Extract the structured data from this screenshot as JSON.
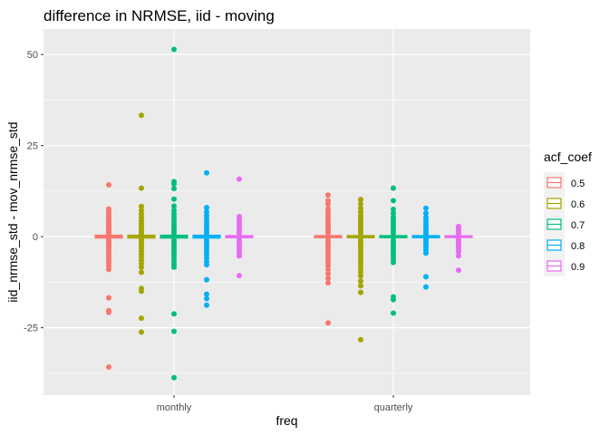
{
  "chart_data": {
    "type": "boxplot",
    "title": "difference in NRMSE, iid - moving",
    "xlabel": "freq",
    "ylabel": "iid_nrmse_std - mov_nrmse_std",
    "categories": [
      "monthly",
      "quarterly"
    ],
    "ylim": [
      -43.5,
      57
    ],
    "yticks": [
      -25,
      0,
      25,
      50
    ],
    "grid": true,
    "legend": {
      "title": "acf_coef",
      "position": "right"
    },
    "series": [
      {
        "name": "0.5",
        "color": "#F8766D",
        "boxes": [
          {
            "category": "monthly",
            "q1": -0.4,
            "median": 0,
            "q3": 0.4,
            "points": [
              14.2,
              7.6,
              6.8,
              6.1,
              5.4,
              4.9,
              4.3,
              3.8,
              3.3,
              2.8,
              2.3,
              1.9,
              1.5,
              1.1,
              0.8,
              -0.8,
              -1.2,
              -1.7,
              -2.3,
              -2.9,
              -3.6,
              -4.3,
              -5.0,
              -5.7,
              -6.5,
              -7.2,
              -8.1,
              -9.0,
              -16.8,
              -20.3,
              -20.8,
              -35.8
            ]
          },
          {
            "category": "quarterly",
            "q1": -0.3,
            "median": 0,
            "q3": 0.3,
            "points": [
              11.4,
              9.9,
              8.9,
              7.6,
              6.6,
              5.7,
              4.9,
              4.2,
              3.5,
              2.8,
              2.2,
              1.6,
              1.0,
              -1.0,
              -1.6,
              -2.3,
              -3.0,
              -3.8,
              -4.5,
              -5.3,
              -6.1,
              -7.0,
              -8.0,
              -9.0,
              -10.2,
              -11.5,
              -12.7,
              -23.7
            ]
          }
        ]
      },
      {
        "name": "0.6",
        "color": "#A3A500",
        "boxes": [
          {
            "category": "monthly",
            "q1": -0.4,
            "median": 0,
            "q3": 0.4,
            "points": [
              33.3,
              13.3,
              8.3,
              7.2,
              6.2,
              5.3,
              4.4,
              3.7,
              3.0,
              2.4,
              1.8,
              1.2,
              0.8,
              -0.8,
              -1.2,
              -1.8,
              -2.5,
              -3.2,
              -4.0,
              -4.8,
              -5.6,
              -6.5,
              -7.4,
              -8.4,
              -9.8,
              -14.2,
              -15.0,
              -22.4,
              -26.2
            ]
          },
          {
            "category": "quarterly",
            "q1": -0.3,
            "median": 0,
            "q3": 0.3,
            "points": [
              10.2,
              9.0,
              7.8,
              6.8,
              5.9,
              5.1,
              4.3,
              3.6,
              2.9,
              2.2,
              1.5,
              0.9,
              -0.9,
              -1.5,
              -2.2,
              -2.9,
              -3.7,
              -4.5,
              -5.3,
              -6.1,
              -7.0,
              -7.9,
              -8.8,
              -9.8,
              -10.8,
              -12.2,
              -13.5,
              -15.3,
              -28.3
            ]
          }
        ]
      },
      {
        "name": "0.7",
        "color": "#00BF7D",
        "boxes": [
          {
            "category": "monthly",
            "q1": -0.4,
            "median": 0,
            "q3": 0.4,
            "points": [
              51.4,
              15.1,
              14.5,
              13.2,
              10.3,
              8.4,
              7.2,
              6.2,
              5.3,
              4.5,
              3.7,
              3.0,
              2.3,
              1.6,
              1.0,
              -1.0,
              -1.6,
              -2.3,
              -3.0,
              -3.7,
              -4.4,
              -5.2,
              -6.0,
              -6.8,
              -7.6,
              -8.4,
              -21.2,
              -26.0,
              -38.7
            ]
          },
          {
            "category": "quarterly",
            "q1": -0.3,
            "median": 0,
            "q3": 0.3,
            "points": [
              13.3,
              9.9,
              7.5,
              6.4,
              5.4,
              4.6,
              3.8,
              3.1,
              2.4,
              1.7,
              1.0,
              -1.0,
              -1.7,
              -2.4,
              -3.1,
              -3.8,
              -4.6,
              -5.4,
              -6.2,
              -7.1,
              -16.5,
              -17.3,
              -21.0
            ]
          }
        ]
      },
      {
        "name": "0.8",
        "color": "#00B0F6",
        "boxes": [
          {
            "category": "monthly",
            "q1": -0.4,
            "median": 0,
            "q3": 0.4,
            "points": [
              17.5,
              8.0,
              6.8,
              5.8,
              4.8,
              3.9,
              3.1,
              2.4,
              1.7,
              1.0,
              -1.0,
              -1.7,
              -2.4,
              -3.2,
              -4.0,
              -4.9,
              -5.8,
              -6.8,
              -7.7,
              -11.8,
              -15.8,
              -17.0,
              -18.8
            ]
          },
          {
            "category": "quarterly",
            "q1": -0.3,
            "median": 0,
            "q3": 0.3,
            "points": [
              7.8,
              6.4,
              5.3,
              4.4,
              3.6,
              2.8,
              2.1,
              1.4,
              0.8,
              -0.8,
              -1.4,
              -2.1,
              -2.8,
              -3.6,
              -4.5,
              -11.0,
              -13.8
            ]
          }
        ]
      },
      {
        "name": "0.9",
        "color": "#E76BF3",
        "boxes": [
          {
            "category": "monthly",
            "q1": -0.3,
            "median": 0,
            "q3": 0.3,
            "points": [
              15.8,
              5.5,
              4.6,
              3.8,
              3.1,
              2.4,
              1.7,
              1.0,
              -1.0,
              -1.6,
              -2.3,
              -3.0,
              -3.8,
              -4.6,
              -5.3,
              -10.7
            ]
          },
          {
            "category": "quarterly",
            "q1": -0.25,
            "median": 0,
            "q3": 0.25,
            "points": [
              2.8,
              2.3,
              1.8,
              1.3,
              0.8,
              -0.8,
              -1.3,
              -1.8,
              -2.3,
              -2.8,
              -3.5,
              -4.2,
              -5.3,
              -9.2
            ]
          }
        ]
      }
    ]
  }
}
